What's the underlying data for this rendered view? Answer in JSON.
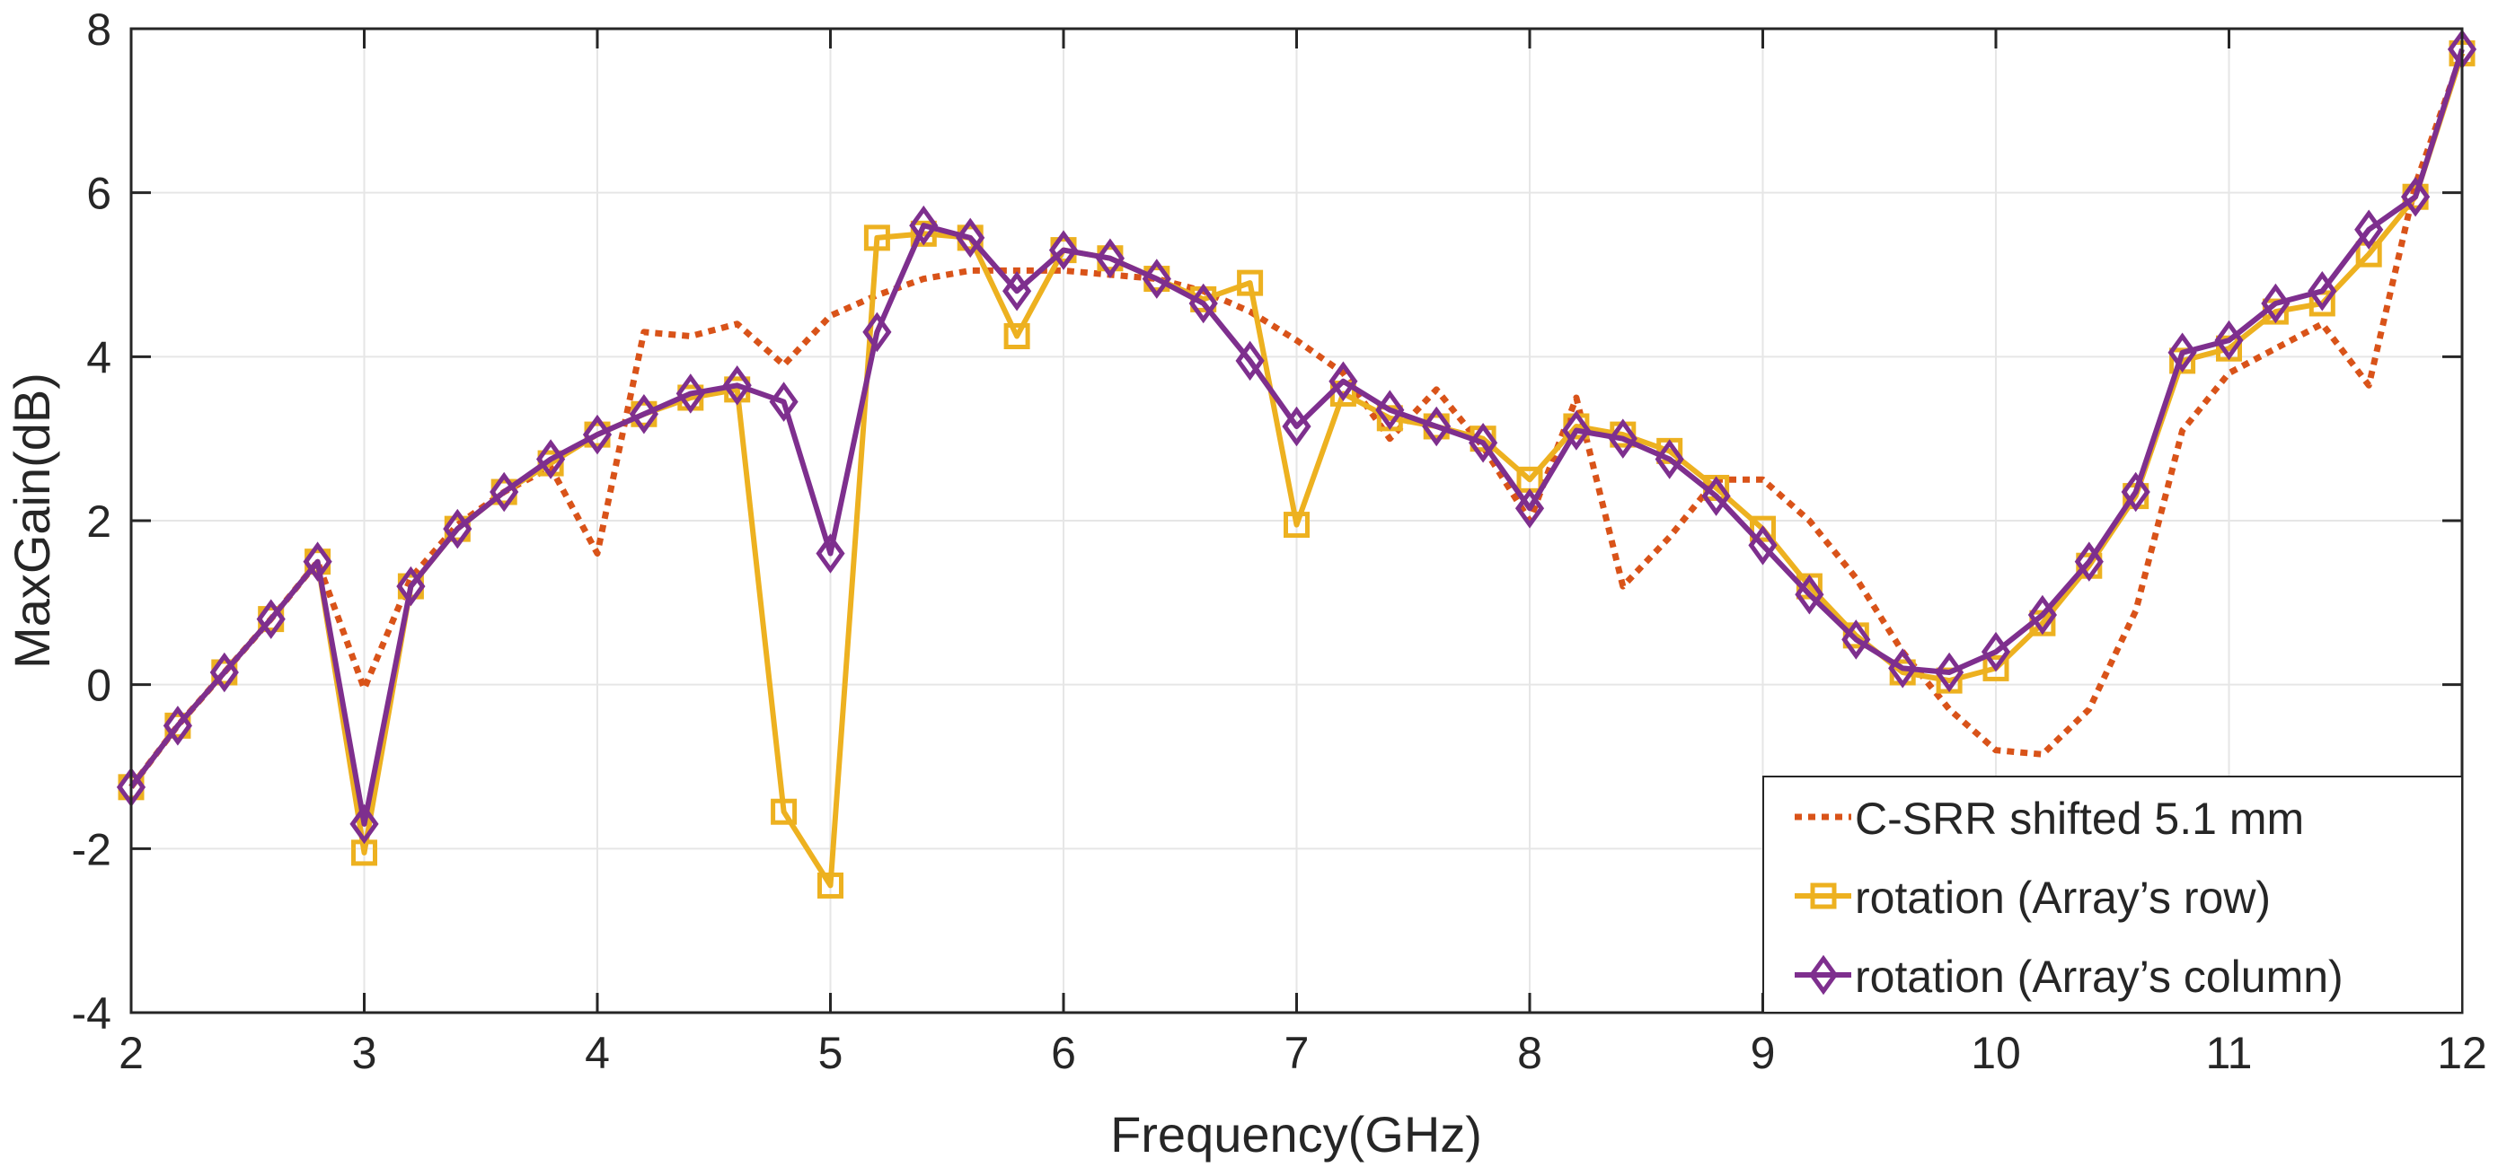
{
  "chart_data": {
    "type": "line",
    "title": "",
    "xlabel": "Frequency(GHz)",
    "ylabel": "MaxGain(dB)",
    "xlim": [
      2,
      12
    ],
    "ylim": [
      -4,
      8
    ],
    "xticks": [
      2,
      3,
      4,
      5,
      6,
      7,
      8,
      9,
      10,
      11,
      12
    ],
    "yticks": [
      -4,
      -2,
      0,
      2,
      4,
      6,
      8
    ],
    "xtick_labels": [
      "2",
      "3",
      "4",
      "5",
      "6",
      "7",
      "8",
      "9",
      "10",
      "11",
      "12"
    ],
    "ytick_labels": [
      "-4",
      "-2",
      "0",
      "2",
      "4",
      "6",
      "8"
    ],
    "grid": true,
    "legend_position": "bottom-right",
    "series": [
      {
        "name": "C-SRR shifted 5.1 mm",
        "color": "#D95319",
        "style": "dotted",
        "marker": "none",
        "x": [
          2,
          2.2,
          2.4,
          2.6,
          2.8,
          3,
          3.2,
          3.4,
          3.6,
          3.8,
          4,
          4.2,
          4.4,
          4.6,
          4.8,
          5,
          5.2,
          5.4,
          5.6,
          5.8,
          6,
          6.2,
          6.4,
          6.6,
          6.8,
          7,
          7.2,
          7.4,
          7.6,
          7.8,
          8,
          8.2,
          8.4,
          8.6,
          8.8,
          9,
          9.2,
          9.4,
          9.6,
          9.8,
          10,
          10.2,
          10.4,
          10.6,
          10.8,
          11,
          11.2,
          11.4,
          11.6,
          11.8,
          12
        ],
        "y": [
          -1.25,
          -0.5,
          0.15,
          0.8,
          1.5,
          -0.05,
          1.3,
          1.95,
          2.35,
          2.65,
          1.6,
          4.3,
          4.25,
          4.4,
          3.9,
          4.5,
          4.75,
          4.95,
          5.05,
          5.05,
          5.05,
          5.0,
          4.95,
          4.8,
          4.55,
          4.2,
          3.8,
          3.0,
          3.6,
          2.9,
          2.0,
          3.5,
          1.2,
          1.8,
          2.5,
          2.5,
          2.0,
          1.3,
          0.4,
          -0.3,
          -0.8,
          -0.85,
          -0.3,
          0.9,
          3.1,
          3.8,
          4.1,
          4.4,
          3.65,
          6.1,
          7.7
        ]
      },
      {
        "name": "rotation (Array’s row)",
        "color": "#EDB120",
        "style": "solid",
        "marker": "square",
        "x": [
          2,
          2.2,
          2.4,
          2.6,
          2.8,
          3,
          3.2,
          3.4,
          3.6,
          3.8,
          4,
          4.2,
          4.4,
          4.6,
          4.8,
          5,
          5.2,
          5.4,
          5.6,
          5.8,
          6,
          6.2,
          6.4,
          6.6,
          6.8,
          7,
          7.2,
          7.4,
          7.6,
          7.8,
          8,
          8.2,
          8.4,
          8.6,
          8.8,
          9,
          9.2,
          9.4,
          9.6,
          9.8,
          10,
          10.2,
          10.4,
          10.6,
          10.8,
          11,
          11.2,
          11.4,
          11.6,
          11.8,
          12
        ],
        "y": [
          -1.25,
          -0.5,
          0.15,
          0.8,
          1.5,
          -2.05,
          1.2,
          1.9,
          2.35,
          2.7,
          3.05,
          3.3,
          3.5,
          3.6,
          -1.55,
          -2.45,
          5.45,
          5.5,
          5.45,
          4.25,
          5.3,
          5.2,
          4.95,
          4.7,
          4.9,
          1.95,
          3.55,
          3.25,
          3.15,
          3.0,
          2.5,
          3.15,
          3.05,
          2.85,
          2.4,
          1.9,
          1.2,
          0.6,
          0.15,
          0.05,
          0.2,
          0.75,
          1.45,
          2.3,
          3.95,
          4.1,
          4.55,
          4.65,
          5.25,
          5.95,
          7.7
        ]
      },
      {
        "name": "rotation (Array’s column)",
        "color": "#7E2F8E",
        "style": "solid",
        "marker": "diamond",
        "x": [
          2,
          2.2,
          2.4,
          2.6,
          2.8,
          3,
          3.2,
          3.4,
          3.6,
          3.8,
          4,
          4.2,
          4.4,
          4.6,
          4.8,
          5,
          5.2,
          5.4,
          5.6,
          5.8,
          6,
          6.2,
          6.4,
          6.6,
          6.8,
          7,
          7.2,
          7.4,
          7.6,
          7.8,
          8,
          8.2,
          8.4,
          8.6,
          8.8,
          9,
          9.2,
          9.4,
          9.6,
          9.8,
          10,
          10.2,
          10.4,
          10.6,
          10.8,
          11,
          11.2,
          11.4,
          11.6,
          11.8,
          12
        ],
        "y": [
          -1.25,
          -0.5,
          0.15,
          0.8,
          1.5,
          -1.7,
          1.2,
          1.9,
          2.35,
          2.75,
          3.05,
          3.3,
          3.55,
          3.65,
          3.45,
          1.6,
          4.3,
          5.6,
          5.45,
          4.8,
          5.3,
          5.2,
          4.95,
          4.65,
          3.95,
          3.15,
          3.7,
          3.35,
          3.15,
          2.95,
          2.15,
          3.1,
          3.0,
          2.75,
          2.3,
          1.7,
          1.1,
          0.55,
          0.2,
          0.15,
          0.4,
          0.85,
          1.5,
          2.35,
          4.05,
          4.2,
          4.65,
          4.8,
          5.55,
          5.95,
          7.75
        ]
      }
    ]
  }
}
